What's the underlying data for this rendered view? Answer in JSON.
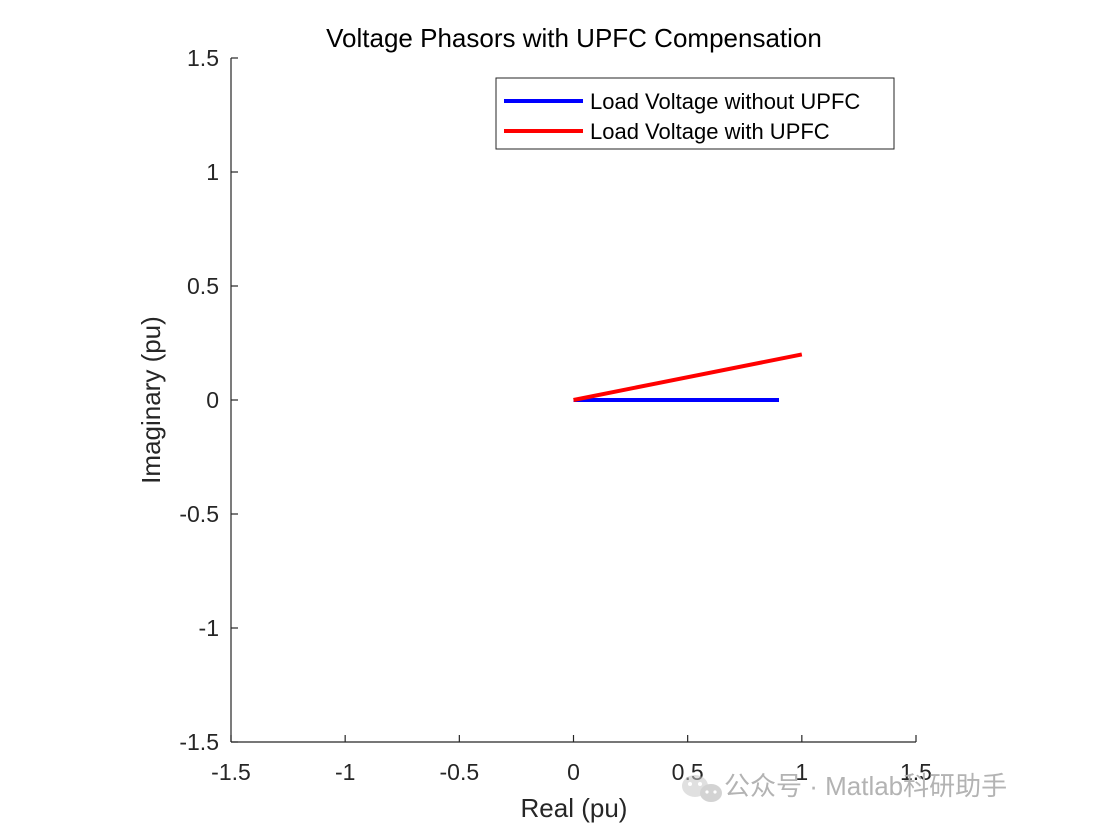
{
  "chart_data": {
    "type": "line",
    "title": "Voltage Phasors with UPFC Compensation",
    "xlabel": "Real (pu)",
    "ylabel": "Imaginary (pu)",
    "xlim": [
      -1.5,
      1.5
    ],
    "ylim": [
      -1.5,
      1.5
    ],
    "xticks": [
      -1.5,
      -1,
      -0.5,
      0,
      0.5,
      1,
      1.5
    ],
    "yticks": [
      -1.5,
      -1,
      -0.5,
      0,
      0.5,
      1,
      1.5
    ],
    "xtick_labels": [
      "-1.5",
      "-1",
      "-0.5",
      "0",
      "0.5",
      "1",
      "1.5"
    ],
    "ytick_labels": [
      "-1.5",
      "-1",
      "-0.5",
      "0",
      "0.5",
      "1",
      "1.5"
    ],
    "grid": false,
    "legend_position": "top-right",
    "series": [
      {
        "name": "Load Voltage without UPFC",
        "color": "#0000ff",
        "x": [
          0,
          0.9
        ],
        "y": [
          0,
          0
        ]
      },
      {
        "name": "Load Voltage with UPFC",
        "color": "#ff0000",
        "x": [
          0,
          1.0
        ],
        "y": [
          0,
          0.2
        ]
      }
    ]
  },
  "watermark": {
    "text": "公众号 · Matlab科研助手",
    "icon": "wechat-icon"
  }
}
